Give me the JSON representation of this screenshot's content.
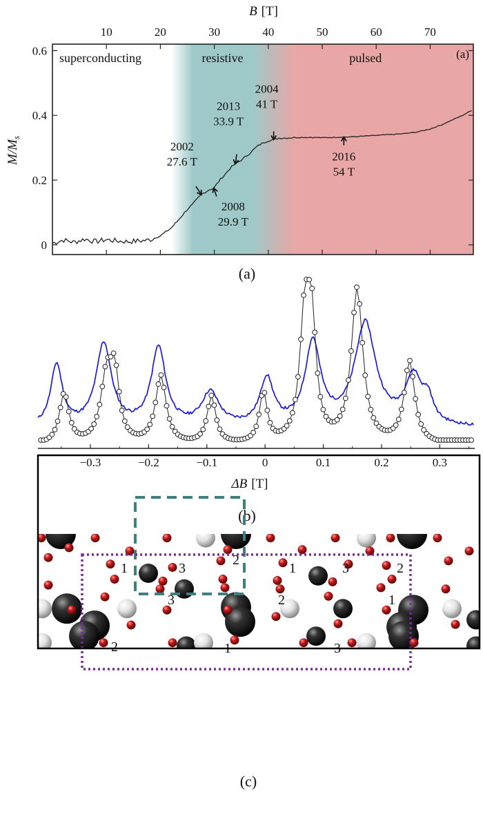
{
  "chart_data": [
    {
      "type": "line",
      "panel_label": "(a)",
      "caption": "(a)",
      "xlabel": "B",
      "xunit": "[T]",
      "ylabel_main": "M",
      "ylabel_sub_main": "M",
      "ylabel_sub": "s",
      "xlim": [
        0,
        78
      ],
      "ylim": [
        -0.03,
        0.62
      ],
      "xticks": [
        10,
        20,
        30,
        40,
        50,
        60,
        70
      ],
      "yticks": [
        0,
        0.2,
        0.4,
        0.6
      ],
      "ytick_labels": [
        "0",
        "0.2",
        "0.4",
        "0.6"
      ],
      "regions": [
        {
          "label": "superconducting",
          "from": 0,
          "to": 21,
          "color": "#ffffff",
          "text_color": "#333333"
        },
        {
          "label": "resistive",
          "from": 21,
          "to": 42,
          "color": "#9ec9c8",
          "text_color": "#3f8a8a"
        },
        {
          "label": "pulsed",
          "from": 42,
          "to": 78,
          "color": "#e9a6a6",
          "text_color": "#c0202a"
        }
      ],
      "curve": {
        "x": [
          0,
          2,
          4,
          6,
          8,
          10,
          12,
          14,
          16,
          18,
          19,
          20,
          21,
          22,
          23,
          24,
          25,
          26,
          27,
          27.6,
          28,
          29,
          29.9,
          31,
          32,
          33,
          33.9,
          35,
          36,
          37,
          38,
          39,
          40,
          41,
          42,
          44,
          46,
          48,
          50,
          52,
          54,
          56,
          58,
          60,
          62,
          64,
          66,
          68,
          70,
          72,
          74,
          76,
          78
        ],
        "y": [
          0.005,
          0.015,
          0.008,
          0.018,
          0.01,
          0.016,
          0.012,
          0.01,
          0.012,
          0.015,
          0.022,
          0.028,
          0.04,
          0.052,
          0.07,
          0.09,
          0.11,
          0.125,
          0.145,
          0.155,
          0.16,
          0.17,
          0.175,
          0.2,
          0.218,
          0.238,
          0.25,
          0.262,
          0.275,
          0.29,
          0.305,
          0.315,
          0.322,
          0.325,
          0.33,
          0.331,
          0.332,
          0.332,
          0.331,
          0.332,
          0.333,
          0.334,
          0.336,
          0.338,
          0.34,
          0.342,
          0.345,
          0.35,
          0.358,
          0.37,
          0.385,
          0.4,
          0.418
        ]
      },
      "annotations": [
        {
          "year": "2002",
          "field": "27.6 T",
          "x": 27.6,
          "y": 0.155,
          "side": "left"
        },
        {
          "year": "2008",
          "field": "29.9 T",
          "x": 29.9,
          "y": 0.175,
          "side": "below"
        },
        {
          "year": "2013",
          "field": "33.9 T",
          "x": 33.9,
          "y": 0.25,
          "side": "above"
        },
        {
          "year": "2004",
          "field": "41 T",
          "x": 41,
          "y": 0.325,
          "side": "above"
        },
        {
          "year": "2016",
          "field": "54 T",
          "x": 54,
          "y": 0.333,
          "side": "below"
        }
      ]
    },
    {
      "type": "line",
      "caption": "(b)",
      "xlabel": "ΔB",
      "xunit": "[T]",
      "xlim": [
        -0.39,
        0.36
      ],
      "ylim": [
        0,
        1.0
      ],
      "xticks": [
        -0.3,
        -0.2,
        -0.1,
        0,
        0.1,
        0.2,
        0.3
      ],
      "xtick_labels": [
        "−0.3",
        "−0.2",
        "−0.1",
        "0",
        "0.1",
        "0.2",
        "0.3"
      ],
      "series": [
        {
          "style": "blue-line",
          "color": "#1a1adc",
          "peaks": [
            [
              -0.358,
              0.41,
              0.012
            ],
            [
              -0.277,
              0.55,
              0.016
            ],
            [
              -0.183,
              0.52,
              0.015
            ],
            [
              -0.094,
              0.22,
              0.018
            ],
            [
              0.003,
              0.31,
              0.014
            ],
            [
              0.082,
              0.55,
              0.016
            ],
            [
              0.172,
              0.68,
              0.022
            ],
            [
              0.255,
              0.32,
              0.018
            ],
            [
              0.28,
              0.14,
              0.01
            ]
          ],
          "baseline": 0.08
        },
        {
          "style": "black-circles",
          "color": "#111111",
          "peaks": [
            [
              -0.345,
              0.32,
              0.01
            ],
            [
              -0.272,
              0.42,
              0.012
            ],
            [
              -0.258,
              0.38,
              0.009
            ],
            [
              -0.179,
              0.43,
              0.011
            ],
            [
              -0.092,
              0.3,
              0.009
            ],
            [
              -0.003,
              0.32,
              0.008
            ],
            [
              0.068,
              0.75,
              0.01
            ],
            [
              0.08,
              0.68,
              0.009
            ],
            [
              0.158,
              0.98,
              0.012
            ],
            [
              0.248,
              0.52,
              0.011
            ]
          ],
          "baseline": 0.02
        }
      ]
    }
  ],
  "panel_c": {
    "caption": "(c)",
    "site_labels": [
      "1",
      "3",
      "2",
      "1",
      "3",
      "2",
      "3",
      "2",
      "1",
      "3",
      "1",
      "2"
    ],
    "colors": {
      "dark": "#1a1a1a",
      "light": "#e8e8e8",
      "red": "#b01818",
      "label": "#a31a1a",
      "teal_box": "#3d7f80",
      "purple_box": "#7a2a9a"
    }
  }
}
